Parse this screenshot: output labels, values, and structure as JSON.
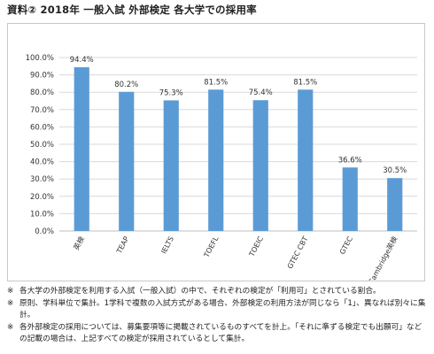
{
  "title": "資料② 2018年 一般入試 外部検定 各大学での採用率",
  "chart_data": {
    "type": "bar",
    "categories": [
      "英検",
      "TEAP",
      "IELTS",
      "TOEFL",
      "TOEIC",
      "GTEC CBT",
      "GTEC",
      "Cambridge英検"
    ],
    "values": [
      94.4,
      80.2,
      75.3,
      81.5,
      75.4,
      81.5,
      36.6,
      30.5
    ],
    "data_labels": [
      "94.4%",
      "80.2%",
      "75.3%",
      "81.5%",
      "75.4%",
      "81.5%",
      "36.6%",
      "30.5%"
    ],
    "ylim": [
      0,
      100
    ],
    "yticks": [
      0,
      10,
      20,
      30,
      40,
      50,
      60,
      70,
      80,
      90,
      100
    ],
    "ytick_labels": [
      "0.0%",
      "10.0%",
      "20.0%",
      "30.0%",
      "40.0%",
      "50.0%",
      "60.0%",
      "70.0%",
      "80.0%",
      "90.0%",
      "100.0%"
    ],
    "grid": true,
    "bar_color": "#5b9bd5",
    "xlabel": "",
    "ylabel": ""
  },
  "notes": [
    {
      "mark": "※",
      "text": "各大学の外部検定を利用する入試（一般入試）の中で、それぞれの検定が「利用可」とされている割合。"
    },
    {
      "mark": "※",
      "text": "原則、学科単位で集計。1学科で複数の入試方式がある場合、外部検定の利用方法が同じなら「1」、異なれば別々に集計。"
    },
    {
      "mark": "※",
      "text": "各外部検定の採用については、募集要項等に掲載されているものすべてを計上。「それに準ずる検定でも出願可」などの記載の場合は、上記すべての検定が採用されているとして集計。"
    }
  ]
}
